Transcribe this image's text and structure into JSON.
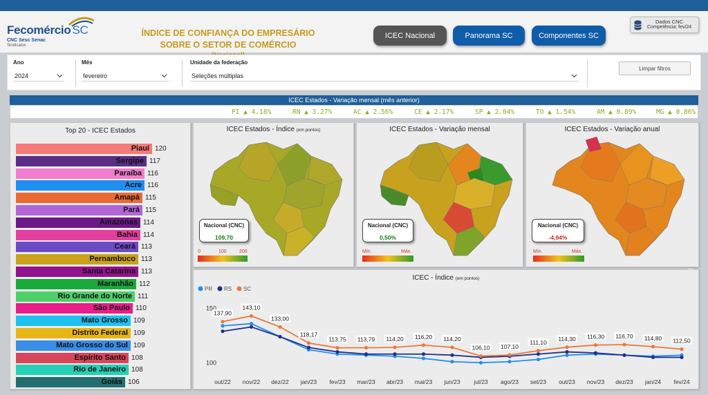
{
  "header": {
    "logo_main": "Fecomércio",
    "logo_sc": "SC",
    "logo_sub": "CNC Sesc Senac",
    "logo_sub2": "Sindicatos",
    "title_line1": "ÍNDICE DE CONFIANÇA DO EMPRESÁRIO",
    "title_line2": "SOBRE O SETOR DE COMÉRCIO",
    "title_line3": "(Nacional)",
    "nav": [
      "ICEC Nacional",
      "Panorama SC",
      "Componentes SC"
    ],
    "dados_title": "Dados CNC",
    "dados_sub": "Competência: fev/24",
    "colors": {
      "topbar": "#1f5f9a",
      "nav_active": "#555555",
      "nav": "#0f5ca8",
      "title": "#c49a1e"
    }
  },
  "filters": {
    "ano_label": "Ano",
    "ano_value": "2024",
    "mes_label": "Mês",
    "mes_value": "fevereiro",
    "uf_label": "Unidade da federação",
    "uf_value": "Seleções múltiplas",
    "clear_label": "Limpar filtros"
  },
  "variation": {
    "title": "ICEC Estados - Variação mensal (mês anterior)",
    "items": [
      "PI ▲ 4.18%",
      "RN ▲ 3.27%",
      "AC ▲ 2.56%",
      "CE ▲ 2.17%",
      "SP ▲ 2.04%",
      "TO ▲ 1.54%",
      "AM ▲ 0.89%",
      "MG ▲ 0.86%"
    ]
  },
  "top20": {
    "title": "Top 20 - ICEC Estados",
    "rows": [
      {
        "label": "Piauí",
        "value": 120,
        "color": "#f47a7a"
      },
      {
        "label": "Sergipe",
        "value": 117,
        "color": "#5b2d86"
      },
      {
        "label": "Paraíba",
        "value": 116,
        "color": "#f27ccd"
      },
      {
        "label": "Acre",
        "value": 116,
        "color": "#1f8ef0"
      },
      {
        "label": "Amapá",
        "value": 115,
        "color": "#ea6a34"
      },
      {
        "label": "Pará",
        "value": 115,
        "color": "#b266d6"
      },
      {
        "label": "Amazonas",
        "value": 114,
        "color": "#6b1985"
      },
      {
        "label": "Bahia",
        "value": 114,
        "color": "#e23f9e"
      },
      {
        "label": "Ceará",
        "value": 113,
        "color": "#6a4bc4"
      },
      {
        "label": "Pernambuco",
        "value": 113,
        "color": "#c9a11c"
      },
      {
        "label": "Santa Catarina",
        "value": 113,
        "color": "#93128e"
      },
      {
        "label": "Maranhão",
        "value": 112,
        "color": "#1aaa3c"
      },
      {
        "label": "Rio Grande do Norte",
        "value": 111,
        "color": "#4fcf6a"
      },
      {
        "label": "São Paulo",
        "value": 110,
        "color": "#e81e89"
      },
      {
        "label": "Mato Grosso",
        "value": 109,
        "color": "#1ec1ef"
      },
      {
        "label": "Distrito Federal",
        "value": 109,
        "color": "#e7b614"
      },
      {
        "label": "Mato Grosso do Sul",
        "value": 109,
        "color": "#3a8de6"
      },
      {
        "label": "Espírito Santo",
        "value": 108,
        "color": "#d9455a"
      },
      {
        "label": "Rio de Janeiro",
        "value": 108,
        "color": "#26d0b5"
      },
      {
        "label": "Goiás",
        "value": 106,
        "color": "#226e6e"
      }
    ]
  },
  "maps": [
    {
      "title": "ICEC Estados - Índice",
      "title_note": "(em pontos)",
      "kpi_label": "Nacional (CNC)",
      "kpi_value": "109,70",
      "kpi_color": "#1a7a1a",
      "legend": [
        "0",
        "100",
        "200"
      ]
    },
    {
      "title": "ICEC Estados - Variação mensal",
      "title_note": "",
      "kpi_label": "Nacional (CNC)",
      "kpi_value": "0,50%",
      "kpi_color": "#1a7a1a",
      "legend": [
        "Mín.",
        "Máx."
      ]
    },
    {
      "title": "ICEC Estados - Variação anual",
      "title_note": "",
      "kpi_label": "Nacional (CNC)",
      "kpi_value": "-4,94%",
      "kpi_color": "#d62020",
      "legend": [
        "Mín.",
        "Máx."
      ]
    }
  ],
  "chart_data": {
    "type": "line",
    "title": "ICEC - Índice",
    "title_note": "(em pontos)",
    "categories": [
      "out/22",
      "nov/22",
      "dez/22",
      "jan/23",
      "fev/23",
      "mar/23",
      "abr/23",
      "mai/23",
      "jun/23",
      "jul/23",
      "ago/23",
      "set/23",
      "out/23",
      "nov/23",
      "dez/23",
      "jan/24",
      "fev/24"
    ],
    "ylim": [
      90,
      160
    ],
    "yticks": [
      100,
      150
    ],
    "legend_placement": "top-left",
    "series": [
      {
        "name": "PR",
        "color": "#1f8ef0",
        "values": [
          134,
          136,
          124,
          112,
          108,
          107,
          106,
          104,
          101,
          100,
          101,
          103,
          107,
          108,
          107,
          106,
          107
        ]
      },
      {
        "name": "RS",
        "color": "#1f2f8a",
        "values": [
          129,
          133,
          124,
          114,
          110,
          108,
          108,
          108,
          107,
          105,
          106,
          108,
          110,
          109,
          107,
          105,
          105
        ]
      },
      {
        "name": "SC",
        "color": "#e8793f",
        "values": [
          137.9,
          143.1,
          133,
          118.17,
          113.75,
          113.79,
          114.2,
          116.2,
          114.2,
          106.1,
          107.1,
          111.1,
          114.3,
          116.3,
          116.7,
          114.8,
          112.5
        ]
      }
    ],
    "data_labels": [
      "137,90",
      "143,10",
      "133,00",
      "118,17",
      "113,75",
      "113,79",
      "114,20",
      "116,20",
      "114,20",
      "106,10",
      "107,10",
      "111,10",
      "114,30",
      "116,30",
      "116,70",
      "114,80",
      "112,50"
    ]
  }
}
